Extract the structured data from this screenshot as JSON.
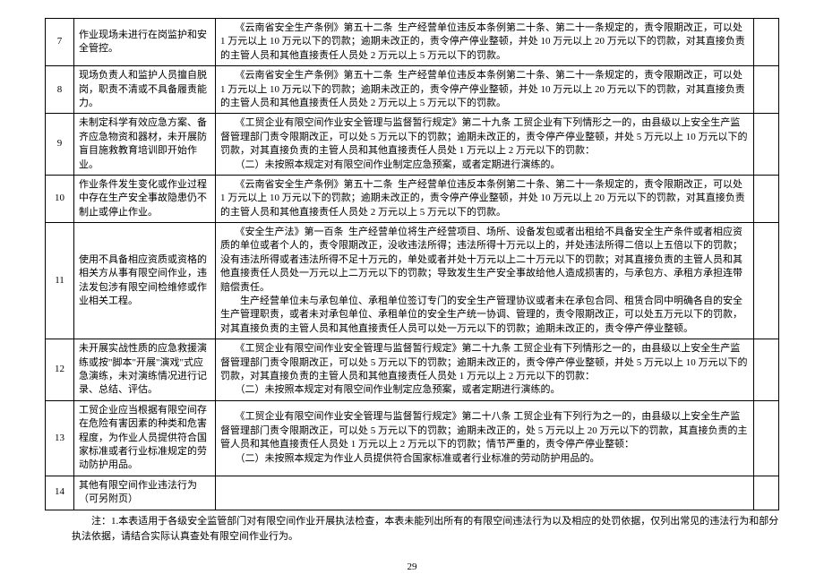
{
  "rows": [
    {
      "num": "7",
      "desc": "作业现场未进行在岗监护和安全管控。",
      "penalty": "　　《云南省安全生产条例》第五十二条  生产经营单位违反本条例第二十条、第二十一条规定的，责令限期改正，可以处 1 万元以上 10 万元以下的罚款；逾期未改正的，责令停产停业整顿，并处 10 万元以上 20 万元以下的罚款，对其直接负责的主管人员和其他直接责任人员处 2 万元以上 5 万元以下的罚款。"
    },
    {
      "num": "8",
      "desc": "现场负责人和监护人员擅自脱岗，职责不清或不具备履责能力。",
      "penalty": "　　《云南省安全生产条例》第五十二条  生产经营单位违反本条例第二十条、第二十一条规定的，责令限期改正，可以处 1 万元以上 10 万元以下的罚款；逾期未改正的，责令停产停业整顿，并处 10 万元以上 20 万元以下的罚款，对其直接负责的主管人员和其他直接责任人员处 2 万元以上 5 万元以下的罚款。"
    },
    {
      "num": "9",
      "desc": "未制定科学有效应急方案、备齐应急物资和器材，未开展防盲目施救教育培训即开始作业。",
      "penalty": "　　《工贸企业有限空间作业安全管理与监督暂行规定》第二十九条 工贸企业有下列情形之一的，由县级以上安全生产监督管理部门责令限期改正，可以处 5 万元以下的罚款；逾期未改正的，责令停产停业整顿，并处 5 万元以上 10 万元以下的罚款，对其直接负责的主管人员和其他直接责任人员处 1 万元以上 2 万元以下的罚款：\n　　（二）未按照本规定对有限空间作业制定应急预案，或者定期进行演练的。"
    },
    {
      "num": "10",
      "desc": "作业条件发生变化或作业过程中存在生产安全事故隐患仍不制止或停止作业。",
      "penalty": "　　《云南省安全生产条例》第五十二条  生产经营单位违反本条例第二十条、第二十一条规定的，责令限期改正，可以处 1 万元以上 10 万元以下的罚款；逾期未改正的，责令停产停业整顿，并处 10 万元以上 20 万元以下的罚款，对其直接负责的主管人员和其他直接责任人员处 2 万元以上 5 万元以下的罚款。"
    },
    {
      "num": "11",
      "desc": "使用不具备相应资质或资格的相关方从事有限空间作业，违法发包涉有限空间检维修或作业相关工程。",
      "penalty": "　　《安全生产法》第一百条  生产经营单位将生产经营项目、场所、设备发包或者出租给不具备安全生产条件或者相应资质的单位或者个人的，责令限期改正，没收违法所得；违法所得十万元以上的，并处违法所得二倍以上五倍以下的罚款；没有违法所得或者违法所得不足十万元的，单处或者并处十万元以上二十万元以下的罚款；对其直接负责的主管人员和其他直接责任人员处一万元以上二万元以下的罚款；导致发生生产安全事故给他人造成损害的，与承包方、承租方承担连带赔偿责任。\n　　生产经营单位未与承包单位、承租单位签订专门的安全生产管理协议或者未在承包合同、租赁合同中明确各自的安全生产管理职责，或者未对承包单位、承租单位的安全生产统一协调、管理的，责令限期改正，可以处五万元以下的罚款，对其直接负责的主管人员和其他直接责任人员可以处一万元以下的罚款；逾期未改正的，责令停产停业整顿。"
    },
    {
      "num": "12",
      "desc": "未开展实战性质的应急救援演练或按\"脚本\"开展\"演戏\"式应急演练，未对演练情况进行记录、总结、评估。",
      "penalty": "　　《工贸企业有限空间作业安全管理与监督暂行规定》第二十九条 工贸企业有下列情形之一的，由县级以上安全生产监督管理部门责令限期改正，可以处 5 万元以下的罚款；逾期未改正的，责令停产停业整顿，并处 5 万元以上 10 万元以下的罚款，对其直接负责的主管人员和其他直接责任人员处 1 万元以上 2 万元以下的罚款：\n　　（二）未按照本规定对有限空间作业制定应急预案，或者定期进行演练的。"
    },
    {
      "num": "13",
      "desc": "工贸企业应当根据有限空间存在危险有害因素的种类和危害程度，为作业人员提供符合国家标准或者行业标准规定的劳动防护用品。",
      "penalty": "　　《工贸企业有限空间作业安全管理与监督暂行规定》第二十八条 工贸企业有下列行为之一的，由县级以上安全生产监督管理部门责令限期改正，可以处 5 万元以下的罚款；逾期未改正的，处 5 万元以上 20 万元以下的罚款，其直接负责的主管人员和其他直接责任人员处 1 万元以上 2 万元以下的罚款；情节严重的，责令停产停业整顿：\n　　（二）未按照本规定为作业人员提供符合国家标准或者行业标准的劳动防护用品的。"
    },
    {
      "num": "14",
      "desc": "其他有限空间作业违法行为（可另附页）",
      "penalty": ""
    }
  ],
  "note": "　　注：1.本表适用于各级安全监管部门对有限空间作业开展执法检查，本表未能列出所有的有限空间违法行为以及相应的处罚依据，仅列出常见的违法行为和部分执法依据，请结合实际认真查处有限空间作业行为。",
  "page_number": "29"
}
